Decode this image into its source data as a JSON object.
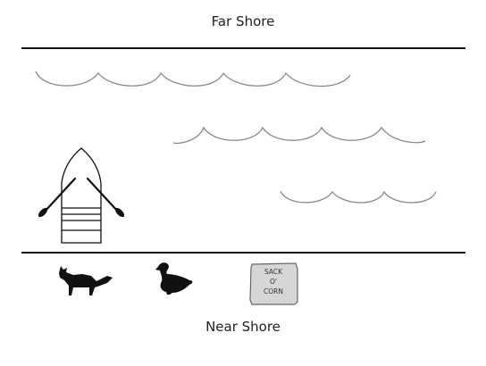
{
  "far_shore": {
    "label": "Far Shore"
  },
  "near_shore": {
    "label": "Near Shore"
  },
  "river": {
    "waves": [
      "wave-row-1",
      "wave-row-2",
      "wave-row-3"
    ]
  },
  "boat": {
    "icon": "rowboat-icon",
    "oars": 2
  },
  "items": [
    {
      "name": "fox",
      "icon": "fox-icon"
    },
    {
      "name": "duck",
      "icon": "duck-icon"
    },
    {
      "name": "sack",
      "icon": "sack-icon",
      "text": {
        "line1": "SACK",
        "line2": "O'",
        "line3": "CORN"
      }
    }
  ],
  "colors": {
    "ink": "#111111",
    "wave": "#888888",
    "sack_fill": "#d6d6d6",
    "sack_stroke": "#666666"
  }
}
